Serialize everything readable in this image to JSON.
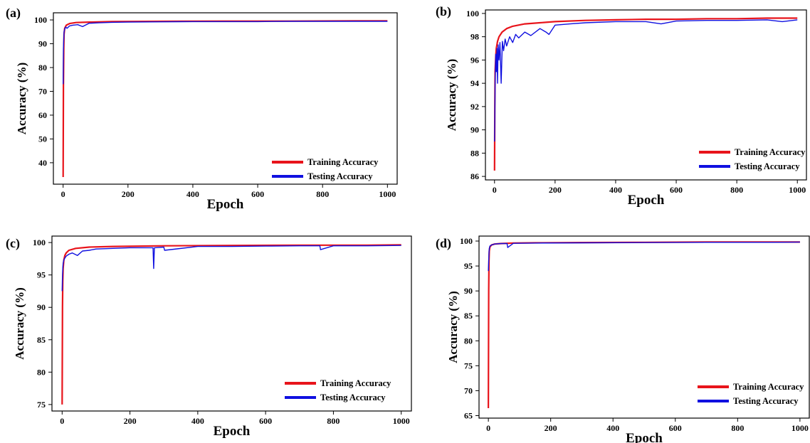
{
  "chart_data": [
    {
      "panel": "(a)",
      "type": "line",
      "xlabel": "Epoch",
      "ylabel": "Accuracy (%)",
      "xlim": [
        -30,
        1030
      ],
      "ylim": [
        31,
        103
      ],
      "xticks": [
        0,
        200,
        400,
        600,
        800,
        1000
      ],
      "yticks": [
        40,
        50,
        60,
        70,
        80,
        90,
        100
      ],
      "legend_position": "bottom-right",
      "series": [
        {
          "name": "Training Accuracy",
          "color": "#e8141b",
          "x": [
            0,
            1,
            2,
            3,
            5,
            10,
            20,
            40,
            80,
            150,
            300,
            500,
            700,
            900,
            1000
          ],
          "y": [
            34,
            72,
            88,
            94,
            96.5,
            97.8,
            98.5,
            98.9,
            99.1,
            99.3,
            99.4,
            99.5,
            99.5,
            99.6,
            99.6
          ]
        },
        {
          "name": "Testing Accuracy",
          "color": "#1010e0",
          "x": [
            0,
            1,
            2,
            3,
            5,
            8,
            12,
            20,
            30,
            45,
            60,
            80,
            110,
            150,
            200,
            300,
            400,
            500,
            600,
            700,
            800,
            900,
            1000
          ],
          "y": [
            73,
            88,
            92,
            95,
            96.2,
            97,
            96.5,
            97.5,
            97.8,
            98,
            97.2,
            98.6,
            98.8,
            99,
            99.1,
            99.2,
            99.3,
            99.3,
            99.3,
            99.4,
            99.4,
            99.4,
            99.4
          ]
        }
      ]
    },
    {
      "panel": "(b)",
      "type": "line",
      "xlabel": "Epoch",
      "ylabel": "Accuracy (%)",
      "xlim": [
        -30,
        1030
      ],
      "ylim": [
        85.7,
        100.3
      ],
      "xticks": [
        0,
        200,
        400,
        600,
        800,
        1000
      ],
      "yticks": [
        86,
        88,
        90,
        92,
        94,
        96,
        98,
        100
      ],
      "legend_position": "bottom-right",
      "series": [
        {
          "name": "Training Accuracy",
          "color": "#e8141b",
          "x": [
            0,
            1,
            2,
            4,
            6,
            10,
            15,
            25,
            40,
            60,
            100,
            150,
            200,
            300,
            400,
            500,
            600,
            700,
            800,
            900,
            1000
          ],
          "y": [
            86.5,
            92,
            95,
            96.3,
            97,
            97.6,
            98,
            98.4,
            98.7,
            98.9,
            99.1,
            99.2,
            99.3,
            99.4,
            99.45,
            99.5,
            99.5,
            99.55,
            99.55,
            99.6,
            99.6
          ]
        },
        {
          "name": "Testing Accuracy",
          "color": "#1010e0",
          "x": [
            0,
            1,
            2,
            4,
            6,
            8,
            10,
            12,
            15,
            18,
            22,
            26,
            30,
            35,
            40,
            50,
            60,
            70,
            80,
            100,
            120,
            150,
            170,
            180,
            200,
            250,
            300,
            400,
            500,
            550,
            600,
            700,
            800,
            900,
            950,
            1000
          ],
          "y": [
            89,
            91,
            94,
            96.5,
            95,
            97,
            94,
            97.3,
            96,
            97.5,
            94,
            97.6,
            96.8,
            97.8,
            97.2,
            98,
            97.5,
            98.2,
            97.9,
            98.4,
            98.1,
            98.7,
            98.4,
            98.2,
            99,
            99.1,
            99.2,
            99.3,
            99.3,
            99.1,
            99.35,
            99.4,
            99.4,
            99.45,
            99.3,
            99.45
          ]
        }
      ]
    },
    {
      "panel": "(c)",
      "type": "line",
      "xlabel": "Epoch",
      "ylabel": "Accuracy (%)",
      "xlim": [
        -30,
        1030
      ],
      "ylim": [
        74,
        101
      ],
      "xticks": [
        0,
        200,
        400,
        600,
        800,
        1000
      ],
      "yticks": [
        75,
        80,
        85,
        90,
        95,
        100
      ],
      "legend_position": "bottom-right",
      "series": [
        {
          "name": "Training Accuracy",
          "color": "#e8141b",
          "x": [
            0,
            1,
            2,
            3,
            5,
            8,
            12,
            20,
            40,
            80,
            150,
            300,
            500,
            700,
            900,
            1000
          ],
          "y": [
            75,
            90,
            94,
            96,
            97.3,
            98,
            98.4,
            98.8,
            99.1,
            99.3,
            99.4,
            99.5,
            99.55,
            99.6,
            99.6,
            99.65
          ]
        },
        {
          "name": "Testing Accuracy",
          "color": "#1010e0",
          "x": [
            0,
            1,
            2,
            3,
            5,
            8,
            12,
            20,
            30,
            45,
            60,
            80,
            100,
            150,
            200,
            268,
            270,
            272,
            300,
            302,
            400,
            500,
            600,
            700,
            760,
            762,
            800,
            900,
            1000
          ],
          "y": [
            92.5,
            95,
            96,
            96.8,
            97.3,
            97.6,
            97.9,
            98.2,
            98.4,
            98,
            98.7,
            98.8,
            99,
            99.1,
            99.2,
            99.2,
            96,
            99.2,
            99.3,
            98.8,
            99.4,
            99.4,
            99.45,
            99.5,
            99.5,
            98.9,
            99.5,
            99.5,
            99.55
          ]
        }
      ]
    },
    {
      "panel": "(d)",
      "type": "line",
      "xlabel": "Epoch",
      "ylabel": "Accuracy (%)",
      "xlim": [
        -30,
        1030
      ],
      "ylim": [
        64.5,
        101
      ],
      "xticks": [
        0,
        200,
        400,
        600,
        800,
        1000
      ],
      "yticks": [
        65,
        70,
        75,
        80,
        85,
        90,
        95,
        100
      ],
      "legend_position": "bottom-right",
      "series": [
        {
          "name": "Training Accuracy",
          "color": "#e8141b",
          "x": [
            0,
            1,
            2,
            3,
            5,
            10,
            20,
            40,
            80,
            150,
            300,
            500,
            700,
            900,
            1000
          ],
          "y": [
            66.5,
            90,
            96,
            98,
            98.8,
            99.2,
            99.4,
            99.5,
            99.6,
            99.65,
            99.7,
            99.75,
            99.8,
            99.8,
            99.8
          ]
        },
        {
          "name": "Testing Accuracy",
          "color": "#1010e0",
          "x": [
            0,
            1,
            2,
            3,
            5,
            10,
            20,
            40,
            60,
            62,
            80,
            150,
            300,
            500,
            700,
            900,
            1000
          ],
          "y": [
            94,
            96,
            97.5,
            98.5,
            99,
            99.2,
            99.4,
            99.5,
            99.5,
            98.7,
            99.55,
            99.6,
            99.65,
            99.7,
            99.75,
            99.75,
            99.8
          ]
        }
      ]
    }
  ]
}
